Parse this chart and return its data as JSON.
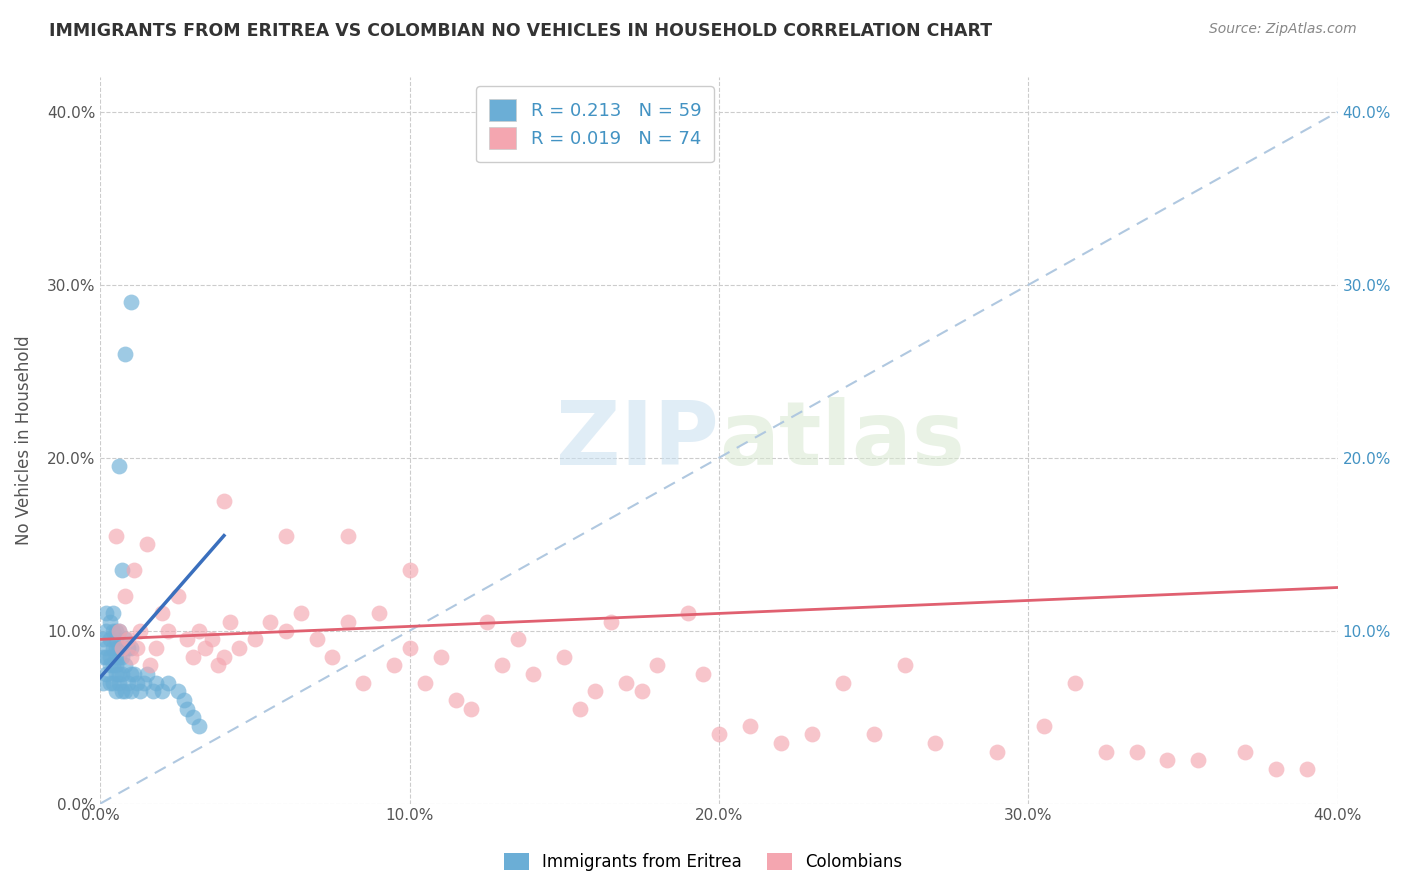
{
  "title": "IMMIGRANTS FROM ERITREA VS COLOMBIAN NO VEHICLES IN HOUSEHOLD CORRELATION CHART",
  "source": "Source: ZipAtlas.com",
  "ylabel": "No Vehicles in Household",
  "xlim": [
    0.0,
    0.4
  ],
  "ylim": [
    0.0,
    0.42
  ],
  "xticks": [
    0.0,
    0.1,
    0.2,
    0.3,
    0.4
  ],
  "yticks": [
    0.0,
    0.1,
    0.2,
    0.3,
    0.4
  ],
  "xticklabels": [
    "0.0%",
    "10.0%",
    "20.0%",
    "30.0%",
    "40.0%"
  ],
  "yticklabels": [
    "0.0%",
    "10.0%",
    "20.0%",
    "30.0%",
    "40.0%"
  ],
  "right_yticklabels": [
    "10.0%",
    "20.0%",
    "30.0%",
    "40.0%"
  ],
  "right_yticks": [
    0.1,
    0.2,
    0.3,
    0.4
  ],
  "series1_name": "Immigrants from Eritrea",
  "series1_color": "#6baed6",
  "series1_R": 0.213,
  "series1_N": 59,
  "series2_name": "Colombians",
  "series2_color": "#f4a6b0",
  "series2_R": 0.019,
  "series2_N": 74,
  "blue_line_color": "#3a6fbd",
  "pink_line_color": "#e06070",
  "watermark_zip": "ZIP",
  "watermark_atlas": "atlas",
  "bg_color": "#ffffff",
  "grid_color": "#cccccc",
  "series1_x": [
    0.001,
    0.001,
    0.001,
    0.002,
    0.002,
    0.002,
    0.002,
    0.002,
    0.003,
    0.003,
    0.003,
    0.003,
    0.003,
    0.004,
    0.004,
    0.004,
    0.004,
    0.004,
    0.005,
    0.005,
    0.005,
    0.005,
    0.005,
    0.005,
    0.005,
    0.006,
    0.006,
    0.006,
    0.006,
    0.006,
    0.007,
    0.007,
    0.007,
    0.007,
    0.008,
    0.008,
    0.008,
    0.009,
    0.009,
    0.01,
    0.01,
    0.01,
    0.011,
    0.012,
    0.013,
    0.014,
    0.015,
    0.017,
    0.018,
    0.02,
    0.022,
    0.025,
    0.027,
    0.028,
    0.03,
    0.032,
    0.01,
    0.008,
    0.006
  ],
  "series1_y": [
    0.07,
    0.085,
    0.095,
    0.075,
    0.085,
    0.09,
    0.1,
    0.11,
    0.07,
    0.08,
    0.085,
    0.095,
    0.105,
    0.07,
    0.08,
    0.09,
    0.1,
    0.11,
    0.065,
    0.075,
    0.08,
    0.085,
    0.09,
    0.095,
    0.1,
    0.07,
    0.075,
    0.085,
    0.09,
    0.1,
    0.065,
    0.075,
    0.085,
    0.135,
    0.065,
    0.08,
    0.095,
    0.07,
    0.09,
    0.065,
    0.075,
    0.09,
    0.075,
    0.07,
    0.065,
    0.07,
    0.075,
    0.065,
    0.07,
    0.065,
    0.07,
    0.065,
    0.06,
    0.055,
    0.05,
    0.045,
    0.29,
    0.26,
    0.195
  ],
  "series2_x": [
    0.005,
    0.006,
    0.007,
    0.008,
    0.009,
    0.01,
    0.011,
    0.012,
    0.013,
    0.015,
    0.016,
    0.018,
    0.02,
    0.022,
    0.025,
    0.028,
    0.03,
    0.032,
    0.034,
    0.036,
    0.038,
    0.04,
    0.042,
    0.045,
    0.05,
    0.055,
    0.06,
    0.065,
    0.07,
    0.075,
    0.08,
    0.085,
    0.09,
    0.095,
    0.1,
    0.105,
    0.11,
    0.115,
    0.12,
    0.125,
    0.13,
    0.135,
    0.14,
    0.15,
    0.155,
    0.16,
    0.165,
    0.17,
    0.175,
    0.18,
    0.19,
    0.195,
    0.2,
    0.21,
    0.22,
    0.23,
    0.24,
    0.25,
    0.26,
    0.27,
    0.29,
    0.305,
    0.315,
    0.325,
    0.335,
    0.345,
    0.355,
    0.37,
    0.38,
    0.39,
    0.04,
    0.06,
    0.08,
    0.1
  ],
  "series2_y": [
    0.155,
    0.1,
    0.09,
    0.12,
    0.095,
    0.085,
    0.135,
    0.09,
    0.1,
    0.15,
    0.08,
    0.09,
    0.11,
    0.1,
    0.12,
    0.095,
    0.085,
    0.1,
    0.09,
    0.095,
    0.08,
    0.085,
    0.105,
    0.09,
    0.095,
    0.105,
    0.1,
    0.11,
    0.095,
    0.085,
    0.105,
    0.07,
    0.11,
    0.08,
    0.09,
    0.07,
    0.085,
    0.06,
    0.055,
    0.105,
    0.08,
    0.095,
    0.075,
    0.085,
    0.055,
    0.065,
    0.105,
    0.07,
    0.065,
    0.08,
    0.11,
    0.075,
    0.04,
    0.045,
    0.035,
    0.04,
    0.07,
    0.04,
    0.08,
    0.035,
    0.03,
    0.045,
    0.07,
    0.03,
    0.03,
    0.025,
    0.025,
    0.03,
    0.02,
    0.02,
    0.175,
    0.155,
    0.155,
    0.135
  ],
  "blue_trend_x0": 0.0,
  "blue_trend_y0": 0.073,
  "blue_trend_x1": 0.04,
  "blue_trend_y1": 0.155,
  "pink_trend_x0": 0.0,
  "pink_trend_y0": 0.095,
  "pink_trend_x1": 0.4,
  "pink_trend_y1": 0.125
}
